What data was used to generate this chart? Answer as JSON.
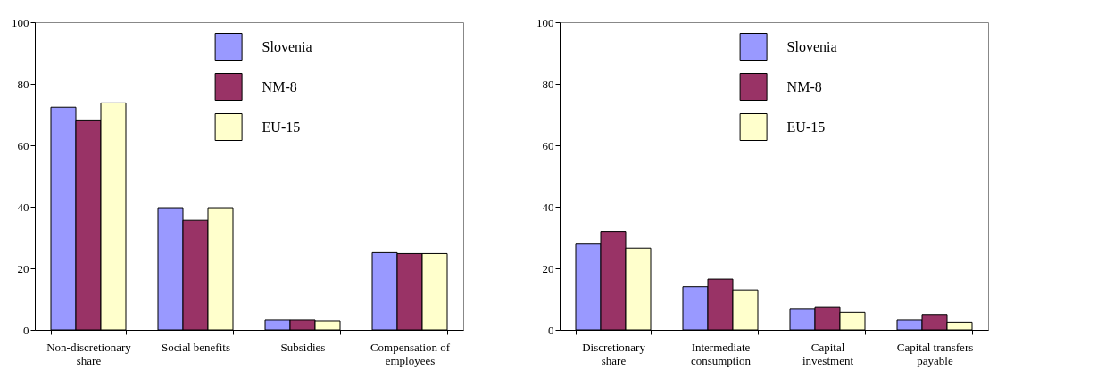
{
  "chart_data": [
    {
      "type": "bar",
      "categories": [
        "Non-discretionary share",
        "Social benefits",
        "Subsidies",
        "Compensation of employees"
      ],
      "series": [
        {
          "name": "Slovenia",
          "color": "#9999ff",
          "values": [
            72.4,
            39.7,
            3.2,
            25.1
          ]
        },
        {
          "name": "NM-8",
          "color": "#993366",
          "values": [
            68,
            35.6,
            3.2,
            24.8
          ]
        },
        {
          "name": "EU-15",
          "color": "#ffffcc",
          "values": [
            73.8,
            39.7,
            2.9,
            24.8
          ]
        }
      ],
      "ylim": [
        0,
        100
      ],
      "yticks": [
        0,
        20,
        40,
        60,
        80,
        100
      ],
      "legend": "top"
    },
    {
      "type": "bar",
      "categories": [
        "Discretionary share",
        "Intermediate consumption",
        "Capital investment",
        "Capital transfers payable"
      ],
      "series": [
        {
          "name": "Slovenia",
          "color": "#9999ff",
          "values": [
            27.9,
            14,
            6.7,
            3.2
          ]
        },
        {
          "name": "NM-8",
          "color": "#993366",
          "values": [
            32,
            16.5,
            7.5,
            5
          ]
        },
        {
          "name": "EU-15",
          "color": "#ffffcc",
          "values": [
            26.6,
            13,
            5.7,
            2.5
          ]
        }
      ],
      "ylim": [
        0,
        100
      ],
      "yticks": [
        0,
        20,
        40,
        60,
        80,
        100
      ],
      "legend": "top"
    }
  ]
}
